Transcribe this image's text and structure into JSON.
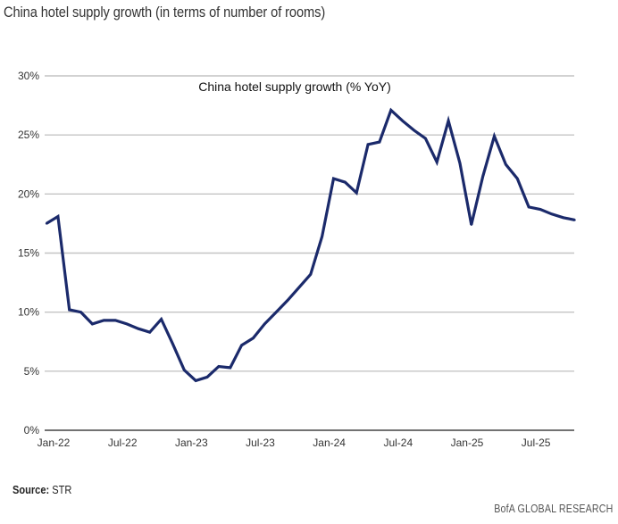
{
  "header": {
    "subtitle": "China hotel supply growth (in terms of number of rooms)"
  },
  "footer": {
    "source_label": "Source:",
    "source_value": "STR",
    "brand": "BofA GLOBAL RESEARCH"
  },
  "chart_data": {
    "type": "line",
    "title": "China hotel supply growth (% YoY)",
    "xlabel": "",
    "ylabel": "",
    "ylim": [
      0,
      30
    ],
    "yticks": [
      "0%",
      "5%",
      "10%",
      "15%",
      "20%",
      "25%",
      "30%"
    ],
    "ytick_values": [
      0,
      5,
      10,
      15,
      20,
      25,
      30
    ],
    "xticks": [
      "Jan-22",
      "Jul-22",
      "Jan-23",
      "Jul-23",
      "Jan-24",
      "Jul-24",
      "Jan-25",
      "Jul-25"
    ],
    "xtick_indices": [
      0,
      6,
      12,
      18,
      24,
      30,
      36,
      42
    ],
    "grid": true,
    "legend": "none",
    "line_color": "#1b2a6b",
    "x": [
      "Jan-22",
      "Feb-22",
      "Mar-22",
      "Apr-22",
      "May-22",
      "Jun-22",
      "Jul-22",
      "Aug-22",
      "Sep-22",
      "Oct-22",
      "Nov-22",
      "Dec-22",
      "Jan-23",
      "Feb-23",
      "Mar-23",
      "Apr-23",
      "May-23",
      "Jun-23",
      "Jul-23",
      "Aug-23",
      "Sep-23",
      "Oct-23",
      "Nov-23",
      "Dec-23",
      "Jan-24",
      "Feb-24",
      "Mar-24",
      "Apr-24",
      "May-24",
      "Jun-24",
      "Jul-24",
      "Aug-24",
      "Sep-24",
      "Oct-24",
      "Nov-24",
      "Dec-24",
      "Jan-25",
      "Feb-25",
      "Mar-25",
      "Apr-25",
      "May-25",
      "Jun-25",
      "Jul-25",
      "Aug-25",
      "Sep-25",
      "Oct-25",
      "Nov-25"
    ],
    "series": [
      {
        "name": "China hotel supply growth (% YoY)",
        "values": [
          17.5,
          18.1,
          10.2,
          10.0,
          9.0,
          9.3,
          9.3,
          9.0,
          8.6,
          8.3,
          9.4,
          7.3,
          5.1,
          4.2,
          4.5,
          5.4,
          5.3,
          7.2,
          7.8,
          9.0,
          10.0,
          11.0,
          12.1,
          13.2,
          16.4,
          21.3,
          21.0,
          20.1,
          24.2,
          24.4,
          27.1,
          26.2,
          25.4,
          24.7,
          22.7,
          26.2,
          22.6,
          17.4,
          21.5,
          24.9,
          22.5,
          21.3,
          18.9,
          18.7,
          18.3,
          18.0,
          17.8
        ]
      }
    ]
  }
}
